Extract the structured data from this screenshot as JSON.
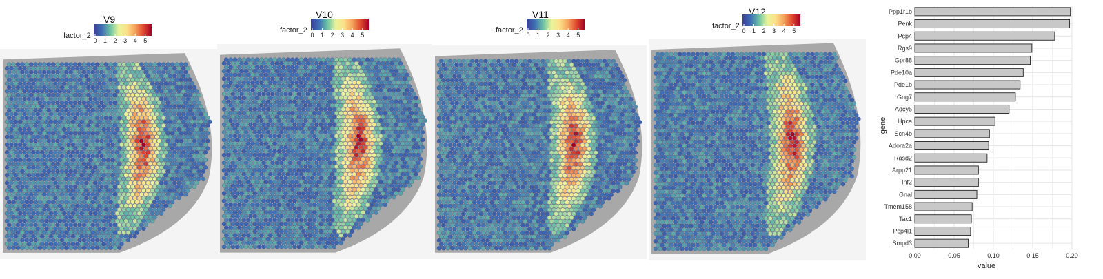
{
  "legend": {
    "label": "factor_2",
    "ticks": [
      "0",
      "1",
      "2",
      "3",
      "4",
      "5"
    ],
    "colors": [
      "#3a3f95",
      "#3f6fb5",
      "#6cc2a4",
      "#e8f49a",
      "#fde08a",
      "#f5a35c",
      "#e0492f",
      "#a50026"
    ]
  },
  "panels": [
    {
      "title": "V9"
    },
    {
      "title": "V10"
    },
    {
      "title": "V11"
    },
    {
      "title": "V12"
    }
  ],
  "chart_data": [
    {
      "type": "heatmap",
      "title": "V9",
      "legend_title": "factor_2",
      "colorbar_range": [
        0,
        5.5
      ]
    },
    {
      "type": "heatmap",
      "title": "V10",
      "legend_title": "factor_2",
      "colorbar_range": [
        0,
        5.5
      ]
    },
    {
      "type": "heatmap",
      "title": "V11",
      "legend_title": "factor_2",
      "colorbar_range": [
        0,
        5.5
      ]
    },
    {
      "type": "heatmap",
      "title": "V12",
      "legend_title": "factor_2",
      "colorbar_range": [
        0,
        5.5
      ]
    },
    {
      "type": "bar",
      "orientation": "horizontal",
      "xlabel": "value",
      "ylabel": "gene",
      "xlim": [
        0,
        0.2
      ],
      "xticks": [
        "0.00",
        "0.05",
        "0.10",
        "0.15",
        "0.20"
      ],
      "grid": true,
      "categories": [
        "Ppp1r1b",
        "Penk",
        "Pcp4",
        "Rgs9",
        "Gpr88",
        "Pde10a",
        "Pde1b",
        "Gng7",
        "Adcy5",
        "Hpca",
        "Scn4b",
        "Adora2a",
        "Rasd2",
        "Arpp21",
        "Inf2",
        "Gnal",
        "Tmem158",
        "Tac1",
        "Pcp4l1",
        "Smpd3"
      ],
      "values": [
        0.198,
        0.197,
        0.178,
        0.149,
        0.147,
        0.138,
        0.134,
        0.128,
        0.12,
        0.102,
        0.095,
        0.094,
        0.092,
        0.081,
        0.081,
        0.079,
        0.073,
        0.072,
        0.071,
        0.068
      ]
    }
  ]
}
